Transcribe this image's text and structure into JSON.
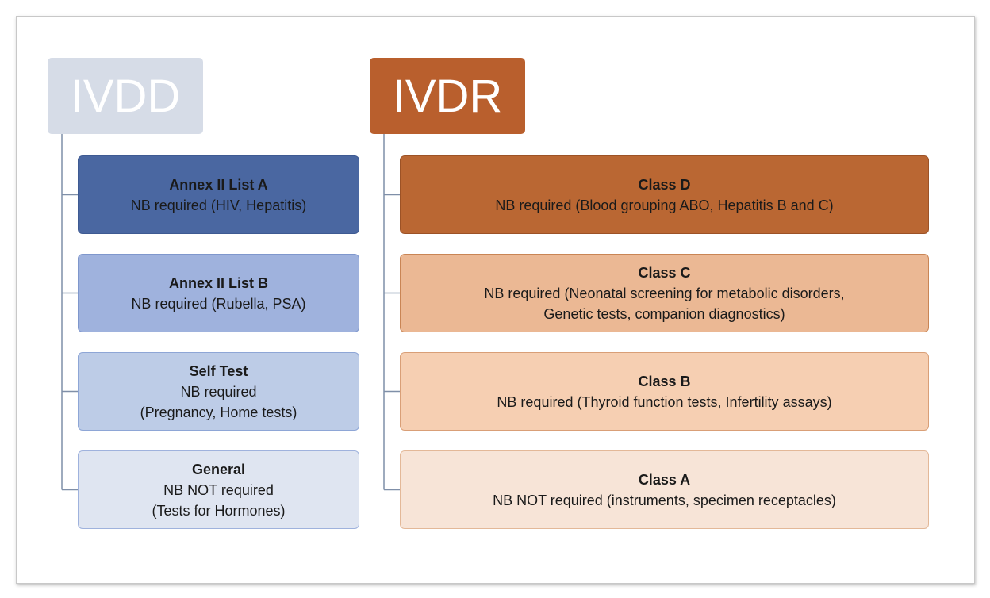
{
  "columns": [
    {
      "header": "IVDD",
      "items": [
        {
          "title": "Annex II List A",
          "lines": [
            "NB required (HIV, Hepatitis)"
          ]
        },
        {
          "title": "Annex II List B",
          "lines": [
            "NB required (Rubella, PSA)"
          ]
        },
        {
          "title": "Self Test",
          "lines": [
            "NB required",
            "(Pregnancy, Home tests)"
          ]
        },
        {
          "title": "General",
          "lines": [
            "NB NOT required",
            "(Tests for Hormones)"
          ]
        }
      ]
    },
    {
      "header": "IVDR",
      "items": [
        {
          "title": "Class D",
          "lines": [
            "NB required (Blood grouping ABO, Hepatitis B and C)"
          ]
        },
        {
          "title": "Class C",
          "lines": [
            "NB required (Neonatal screening for metabolic disorders,",
            "Genetic tests, companion diagnostics)"
          ]
        },
        {
          "title": "Class B",
          "lines": [
            "NB required (Thyroid function tests, Infertility assays)"
          ]
        },
        {
          "title": "Class A",
          "lines": [
            "NB NOT required (instruments, specimen receptacles)"
          ]
        }
      ]
    }
  ]
}
